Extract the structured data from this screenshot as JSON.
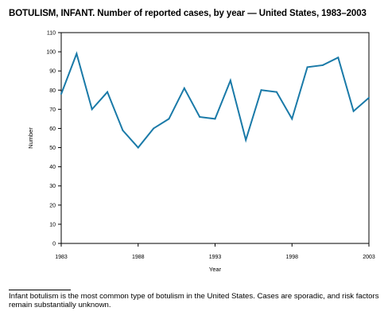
{
  "chart_data": {
    "type": "line",
    "title": "BOTULISM, INFANT. Number of reported cases, by year — United States, 1983–2003",
    "xlabel": "Year",
    "ylabel": "Number",
    "xlim": [
      1983,
      2003
    ],
    "ylim": [
      0,
      110
    ],
    "x_ticks": [
      1983,
      1988,
      1993,
      1998,
      2003
    ],
    "y_ticks": [
      0,
      10,
      20,
      30,
      40,
      50,
      60,
      70,
      80,
      90,
      100,
      110
    ],
    "grid": false,
    "legend": "none",
    "line_color": "#1a7aa8",
    "series": [
      {
        "x": [
          1983,
          1984,
          1985,
          1986,
          1987,
          1988,
          1989,
          1990,
          1991,
          1992,
          1993,
          1994,
          1995,
          1996,
          1997,
          1998,
          1999,
          2000,
          2001,
          2002,
          2003
        ],
        "values": [
          78,
          99,
          70,
          79,
          59,
          50,
          60,
          65,
          81,
          66,
          65,
          85,
          54,
          80,
          79,
          65,
          92,
          93,
          97,
          69,
          76
        ]
      }
    ]
  },
  "footnote": "Infant botulism is the most common type of botulism in the United States. Cases are sporadic, and risk factors remain substantially unknown."
}
